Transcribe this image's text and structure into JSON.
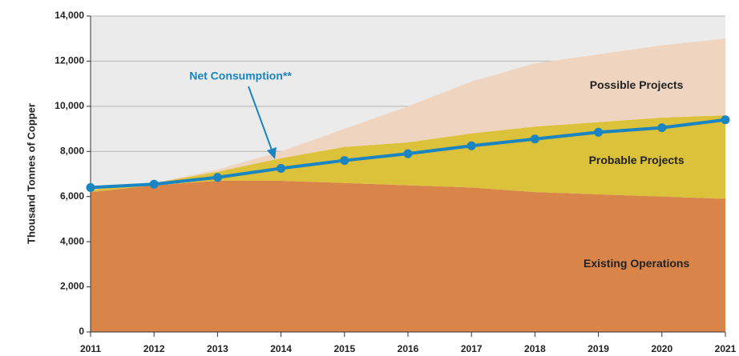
{
  "chart_data": {
    "type": "stacked_area_line",
    "y_label": "Thousand Tonnes of Copper",
    "categories": [
      "2011",
      "2012",
      "2013",
      "2014",
      "2015",
      "2016",
      "2017",
      "2018",
      "2019",
      "2020",
      "2021"
    ],
    "series": [
      {
        "name": "Existing Operations",
        "color": "#d9854a",
        "values": [
          6200,
          6500,
          6700,
          6700,
          6600,
          6500,
          6400,
          6200,
          6100,
          6000,
          5900
        ]
      },
      {
        "name": "Probable Projects",
        "color": "#dcc13a",
        "values": [
          100,
          100,
          400,
          1000,
          1600,
          1900,
          2400,
          2900,
          3200,
          3500,
          3700
        ]
      },
      {
        "name": "Possible Projects",
        "color": "#efd5c0",
        "values": [
          0,
          0,
          100,
          300,
          800,
          1600,
          2300,
          2800,
          3000,
          3200,
          3400
        ]
      }
    ],
    "line": {
      "name": "Net Consumption**",
      "color": "#1a85c0",
      "values": [
        6400,
        6550,
        6850,
        7250,
        7600,
        7900,
        8250,
        8550,
        8850,
        9050,
        9400
      ]
    },
    "ylim": [
      0,
      14000
    ],
    "yticks": [
      0,
      {
        "value": 2000,
        "label": "2,000"
      },
      {
        "value": 4000,
        "label": "4,000"
      },
      {
        "value": 6000,
        "label": "6,000"
      },
      {
        "value": 8000,
        "label": "8,000"
      },
      {
        "value": 10000,
        "label": "10,000"
      },
      {
        "value": 12000,
        "label": "12,000"
      },
      {
        "value": 14000,
        "label": "14,000"
      }
    ],
    "grid": true
  }
}
